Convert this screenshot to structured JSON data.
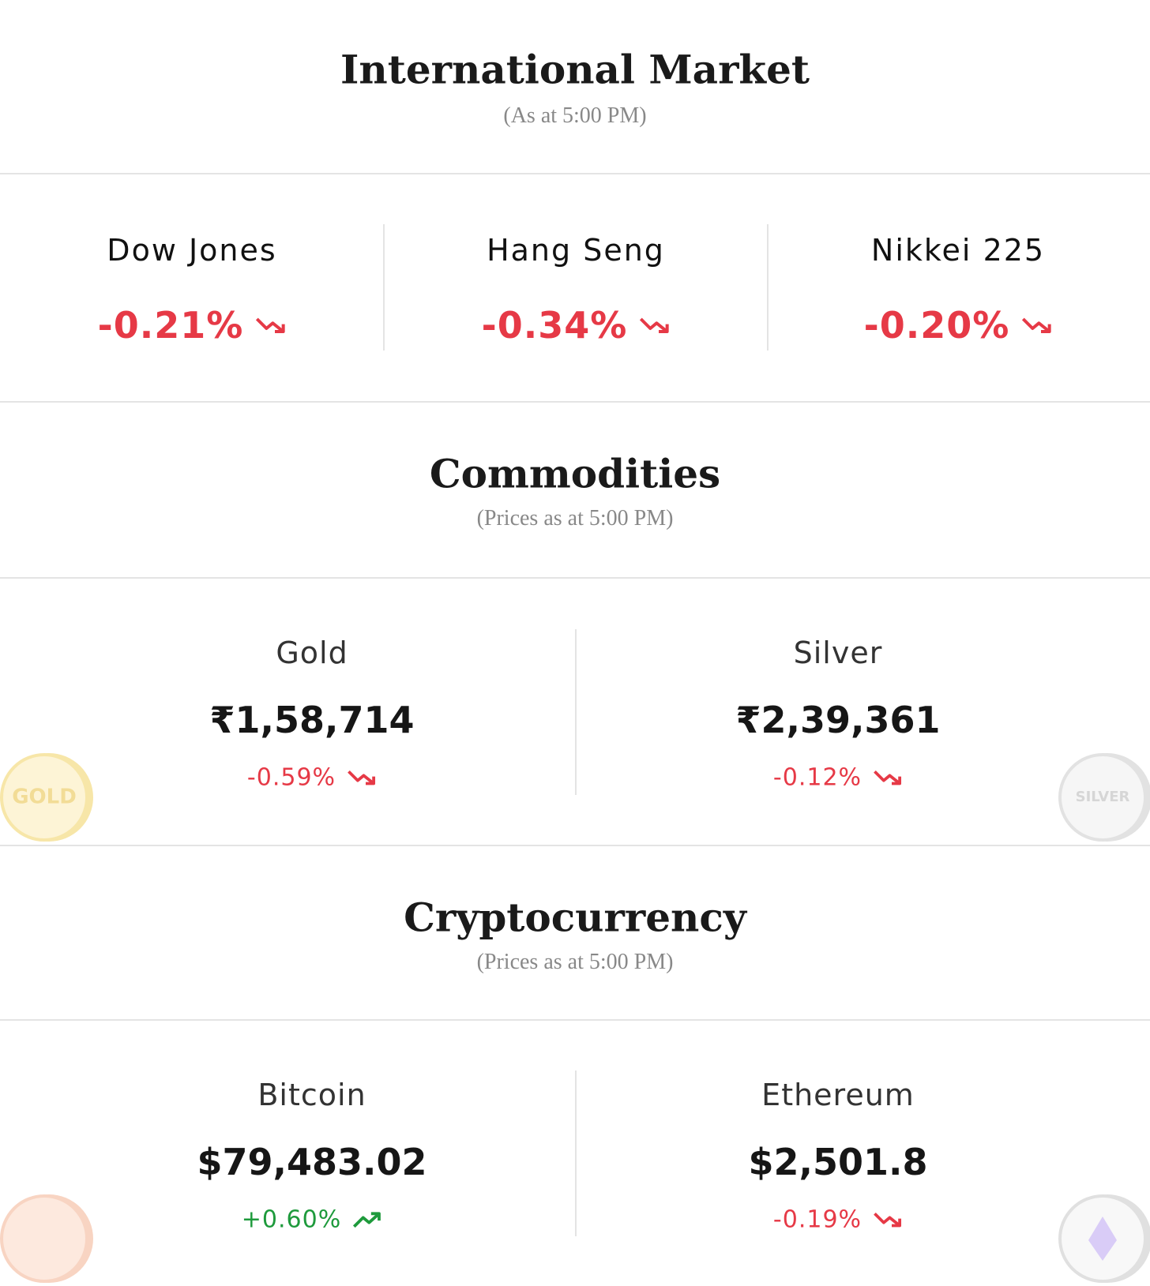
{
  "sections": [
    {
      "title": "International Market",
      "subtitle": "(As at 5:00 PM)",
      "items": [
        {
          "name": "Dow Jones",
          "change": "-0.21%",
          "trend": "down",
          "color": "#e63946"
        },
        {
          "name": "Hang Seng",
          "change": "-0.34%",
          "trend": "down",
          "color": "#e63946"
        },
        {
          "name": "Nikkei 225",
          "change": "-0.20%",
          "trend": "down",
          "color": "#e63946"
        }
      ]
    },
    {
      "title": "Commodities",
      "subtitle": "(Prices as at 5:00 PM)",
      "items": [
        {
          "name": "Gold",
          "price": "₹1,58,714",
          "change": "-0.59%",
          "trend": "down",
          "color": "#e63946",
          "coin_label": "GOLD"
        },
        {
          "name": "Silver",
          "price": "₹2,39,361",
          "change": "-0.12%",
          "trend": "down",
          "color": "#e63946",
          "coin_label": "SILVER"
        }
      ]
    },
    {
      "title": "Cryptocurrency",
      "subtitle": "(Prices as at 5:00 PM)",
      "items": [
        {
          "name": "Bitcoin",
          "price": "$79,483.02",
          "change": "+0.60%",
          "trend": "up",
          "color": "#1e9a3c"
        },
        {
          "name": "Ethereum",
          "price": "$2,501.8",
          "change": "-0.19%",
          "trend": "down",
          "color": "#e63946"
        }
      ]
    }
  ]
}
